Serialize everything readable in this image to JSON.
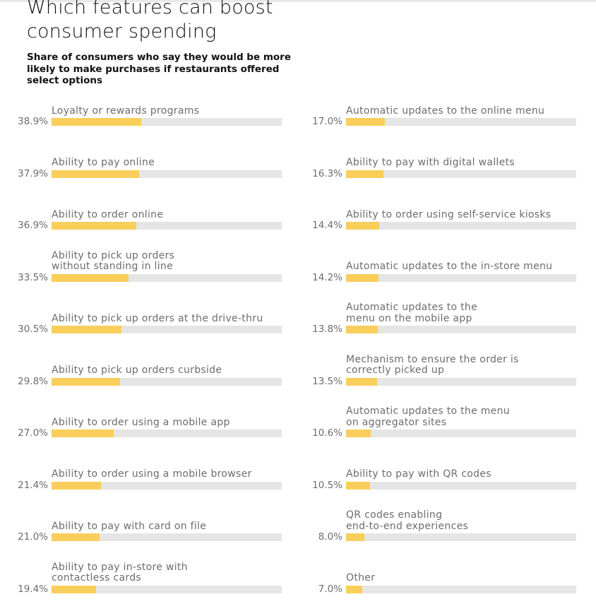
{
  "title": "Which features can boost\nconsumer spending",
  "subtitle": "Share of consumers who say they would be more likely to make purchases if restaurants offered select options",
  "chart_data": {
    "type": "bar",
    "orientation": "horizontal",
    "title": "Which features can boost consumer spending",
    "subtitle": "Share of consumers who say they would be more likely to make purchases if restaurants offered select options",
    "xlim": [
      0,
      100
    ],
    "unit": "%",
    "colors": {
      "fill": "#f9ce5a",
      "track": "#e5e5e6"
    },
    "columns": [
      [
        {
          "label": "Loyalty or rewards programs",
          "value": 38.9,
          "display": "38.9%"
        },
        {
          "label": "Ability to pay online",
          "value": 37.9,
          "display": "37.9%"
        },
        {
          "label": "Ability to order online",
          "value": 36.9,
          "display": "36.9%"
        },
        {
          "label": "Ability to pick up orders\nwithout standing in line",
          "value": 33.5,
          "display": "33.5%"
        },
        {
          "label": "Ability to pick up orders at the drive-thru",
          "value": 30.5,
          "display": "30.5%"
        },
        {
          "label": "Ability to pick up orders curbside",
          "value": 29.8,
          "display": "29.8%"
        },
        {
          "label": "Ability to order using a mobile app",
          "value": 27.0,
          "display": "27.0%"
        },
        {
          "label": "Ability to order using a mobile browser",
          "value": 21.4,
          "display": "21.4%"
        },
        {
          "label": "Ability to pay with card on file",
          "value": 21.0,
          "display": "21.0%"
        },
        {
          "label": "Ability to pay in-store with\ncontactless cards",
          "value": 19.4,
          "display": "19.4%"
        }
      ],
      [
        {
          "label": "Automatic updates to the online menu",
          "value": 17.0,
          "display": "17.0%"
        },
        {
          "label": "Ability to pay with digital wallets",
          "value": 16.3,
          "display": "16.3%"
        },
        {
          "label": "Ability to order using self-service kiosks",
          "value": 14.4,
          "display": "14.4%"
        },
        {
          "label": "Automatic updates to the in-store menu",
          "value": 14.2,
          "display": "14.2%"
        },
        {
          "label": "Automatic updates to the\nmenu on the mobile app",
          "value": 13.8,
          "display": "13.8%"
        },
        {
          "label": "Mechanism to ensure the order is\ncorrectly picked up",
          "value": 13.5,
          "display": "13.5%"
        },
        {
          "label": "Automatic updates to the menu\non aggregator sites",
          "value": 10.6,
          "display": "10.6%"
        },
        {
          "label": "Ability to pay with QR codes",
          "value": 10.5,
          "display": "10.5%"
        },
        {
          "label": "QR codes enabling\nend-to-end experiences",
          "value": 8.0,
          "display": "8.0%"
        },
        {
          "label": "Other",
          "value": 7.0,
          "display": "7.0%"
        }
      ]
    ]
  }
}
